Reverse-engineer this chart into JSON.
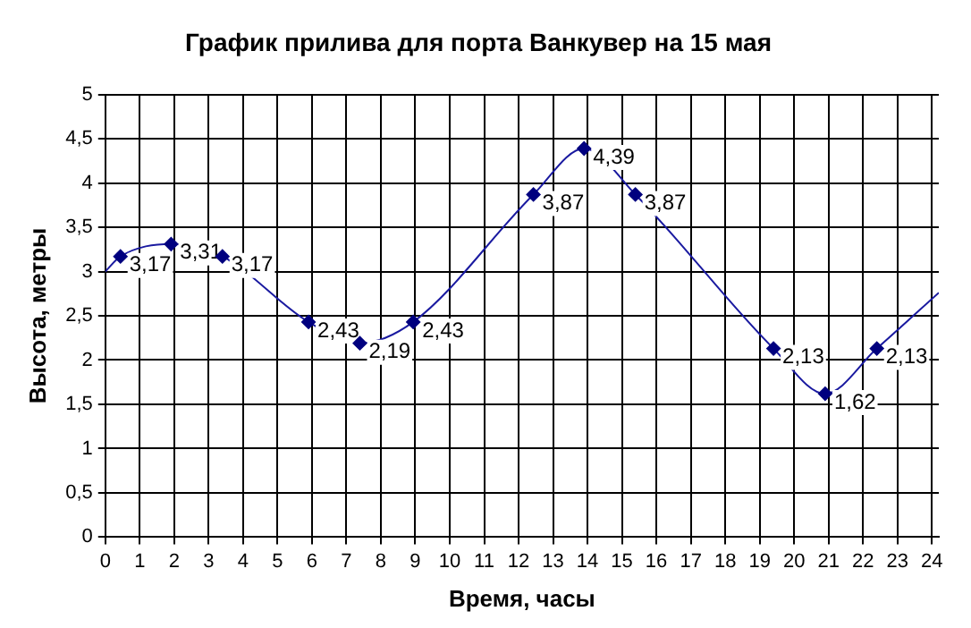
{
  "chart_data": {
    "type": "line",
    "title": "График прилива для порта Ванкувер на 15 мая",
    "xlabel": "Время, часы",
    "ylabel": "Высота, метры",
    "series": [
      {
        "type": "line",
        "color": "#1a1aa0",
        "marker": "none",
        "x": [
          0,
          0.44,
          1.91,
          3.4,
          5.9,
          7.39,
          8.94,
          12.43,
          13.9,
          15.39,
          19.4,
          20.9,
          22.4,
          24.2
        ],
        "values": [
          3.0,
          3.17,
          3.31,
          3.17,
          2.43,
          2.19,
          2.43,
          3.87,
          4.39,
          3.87,
          2.13,
          1.62,
          2.13,
          2.76
        ]
      },
      {
        "type": "scatter",
        "color": "#00007f",
        "marker": "diamond",
        "x": [
          0.44,
          1.91,
          3.4,
          5.9,
          7.39,
          8.94,
          12.43,
          13.9,
          15.39,
          19.4,
          20.9,
          22.4
        ],
        "values": [
          3.17,
          3.31,
          3.17,
          2.43,
          2.19,
          2.43,
          3.87,
          4.39,
          3.87,
          2.13,
          1.62,
          2.13
        ],
        "value_labels": [
          "3,17",
          "3,31",
          "3,17",
          "2,43",
          "2,19",
          "2,43",
          "3,87",
          "4,39",
          "3,87",
          "2,13",
          "1,62",
          "2,13"
        ]
      }
    ],
    "xlim": [
      0,
      24.2
    ],
    "xticks": [
      0,
      1,
      2,
      3,
      4,
      5,
      6,
      7,
      8,
      9,
      10,
      11,
      12,
      13,
      14,
      15,
      16,
      17,
      18,
      19,
      20,
      21,
      22,
      23,
      24
    ],
    "ylim": [
      0,
      5
    ],
    "yticks": [
      0,
      {
        "value": 0.5,
        "label": "0,5"
      },
      1,
      {
        "value": 1.5,
        "label": "1,5"
      },
      2,
      {
        "value": 2.5,
        "label": "2,5"
      },
      3,
      {
        "value": 3.5,
        "label": "3,5"
      },
      4,
      {
        "value": 4.5,
        "label": "4,5"
      },
      5
    ],
    "grid": true,
    "legend": false
  }
}
